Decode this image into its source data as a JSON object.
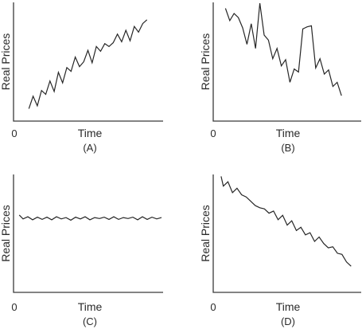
{
  "chart_data": [
    {
      "type": "line",
      "panel_label": "(A)",
      "origin_label": "0",
      "xlabel": "Time",
      "ylabel": "Real Prices",
      "grid": false,
      "xlim": [
        0,
        30
      ],
      "ylim": [
        0,
        10
      ],
      "series": [
        {
          "x": [
            1,
            2,
            3,
            4,
            5,
            6,
            7,
            8,
            9,
            10,
            11,
            12,
            13,
            14,
            15,
            16,
            17,
            18,
            19,
            20,
            21,
            22,
            23,
            24,
            25,
            26,
            27,
            28,
            29
          ],
          "values": [
            0.3,
            1.6,
            0.6,
            2.2,
            1.8,
            3.2,
            2.1,
            4.1,
            3.0,
            4.6,
            4.2,
            5.7,
            4.7,
            5.2,
            6.4,
            5.1,
            6.8,
            6.3,
            7.1,
            6.8,
            7.2,
            8.1,
            7.3,
            8.5,
            7.4,
            8.9,
            8.3,
            9.2,
            9.6
          ]
        }
      ]
    },
    {
      "type": "line",
      "panel_label": "(B)",
      "origin_label": "0",
      "xlabel": "Time",
      "ylabel": "Real Prices",
      "grid": false,
      "xlim": [
        0,
        30
      ],
      "ylim": [
        0,
        10
      ],
      "series": [
        {
          "x": [
            1,
            2,
            3,
            4,
            5,
            6,
            7,
            8,
            9,
            10,
            11,
            12,
            13,
            14,
            15,
            16,
            17,
            18,
            19,
            20,
            21,
            22,
            23,
            24,
            25,
            26,
            27,
            28
          ],
          "values": [
            9.5,
            8.3,
            9.0,
            8.6,
            7.6,
            6.0,
            8.0,
            5.6,
            10.0,
            6.9,
            6.4,
            4.6,
            5.6,
            3.9,
            4.5,
            2.3,
            3.6,
            3.3,
            7.5,
            7.7,
            7.8,
            3.7,
            4.6,
            3.1,
            3.5,
            1.9,
            2.3,
            1.0
          ]
        }
      ]
    },
    {
      "type": "line",
      "panel_label": "(C)",
      "origin_label": "0",
      "xlabel": "Time",
      "ylabel": "Real Prices",
      "grid": false,
      "xlim": [
        0,
        30
      ],
      "ylim": [
        0,
        10
      ],
      "series": [
        {
          "x": [
            0.2,
            1,
            2,
            3,
            4,
            5,
            6,
            7,
            8,
            9,
            10,
            11,
            12,
            13,
            14,
            15,
            16,
            17,
            18,
            19,
            20,
            21,
            22,
            23,
            24,
            25,
            26,
            27,
            28,
            29,
            30
          ],
          "values": [
            7.3,
            6.4,
            6.9,
            6.2,
            6.8,
            6.3,
            6.8,
            6.2,
            6.9,
            6.4,
            6.7,
            6.1,
            6.8,
            6.4,
            6.9,
            6.2,
            6.7,
            6.5,
            6.8,
            6.3,
            6.9,
            6.3,
            6.7,
            6.5,
            6.8,
            6.2,
            6.9,
            6.3,
            6.8,
            6.4,
            6.7
          ]
        }
      ]
    },
    {
      "type": "line",
      "panel_label": "(D)",
      "origin_label": "0",
      "xlabel": "Time",
      "ylabel": "Real Prices",
      "grid": false,
      "xlim": [
        0,
        30
      ],
      "ylim": [
        0,
        10
      ],
      "series": [
        {
          "x": [
            0.5,
            1,
            2,
            3,
            4,
            5,
            6,
            7,
            8,
            9,
            10,
            11,
            12,
            13,
            14,
            15,
            16,
            17,
            18,
            19,
            20,
            21,
            22,
            23,
            24,
            25,
            26,
            27,
            28,
            29
          ],
          "values": [
            9.9,
            9.0,
            9.4,
            8.4,
            8.8,
            8.2,
            8.0,
            7.6,
            7.2,
            7.0,
            6.9,
            6.5,
            6.7,
            5.9,
            6.3,
            5.4,
            5.8,
            4.9,
            5.2,
            4.5,
            4.7,
            3.9,
            4.3,
            3.7,
            3.3,
            3.4,
            2.8,
            2.7,
            2.0,
            1.6
          ]
        }
      ]
    }
  ]
}
